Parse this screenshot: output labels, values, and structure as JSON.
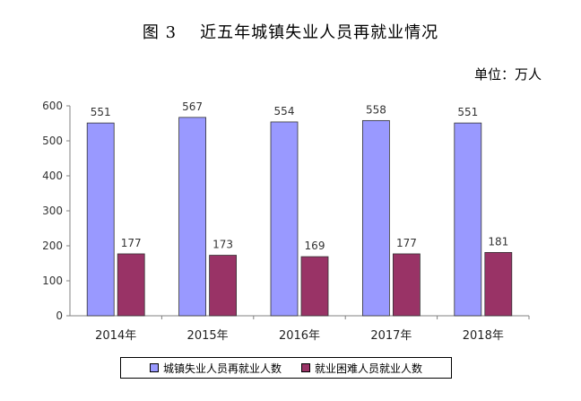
{
  "figure": {
    "number": "图 3",
    "title": "近五年城镇失业人员再就业情况",
    "unit": "单位：万人"
  },
  "colors": {
    "series1": "#9999ff",
    "series2": "#993366",
    "axis": "#808080"
  },
  "chart_data": {
    "type": "bar",
    "categories": [
      "2014年",
      "2015年",
      "2016年",
      "2017年",
      "2018年"
    ],
    "series": [
      {
        "name": "城镇失业人员再就业人数",
        "values": [
          551,
          567,
          554,
          558,
          551
        ]
      },
      {
        "name": "就业困难人员就业人数",
        "values": [
          177,
          173,
          169,
          177,
          181
        ]
      }
    ],
    "ylim": [
      0,
      600
    ],
    "yticks": [
      "0",
      "100",
      "200",
      "300",
      "400",
      "500",
      "600"
    ],
    "grid": false,
    "legend": "bottom"
  }
}
